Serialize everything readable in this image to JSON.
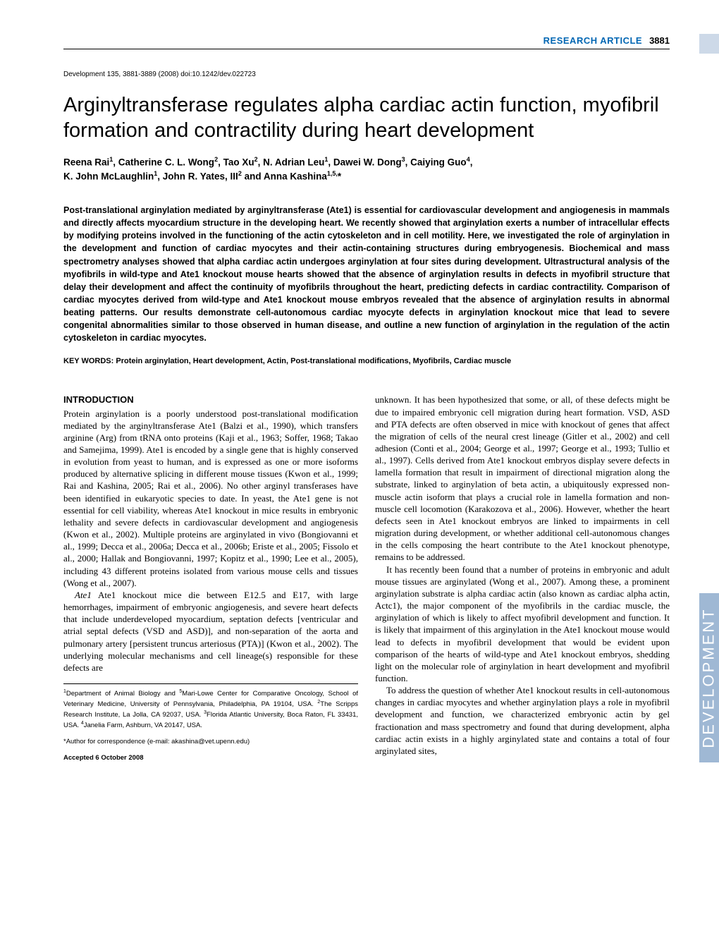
{
  "header": {
    "label": "RESEARCH ARTICLE",
    "page_number": "3881",
    "label_color": "#0066b3"
  },
  "doi": "Development 135, 3881-3889 (2008) doi:10.1242/dev.022723",
  "title": "Arginyltransferase regulates alpha cardiac actin function, myofibril formation and contractility during heart development",
  "authors_line1": "Reena Rai",
  "authors_sup1": "1",
  "authors_line2": ", Catherine C. L. Wong",
  "authors_sup2": "2",
  "authors_line3": ", Tao Xu",
  "authors_sup3": "2",
  "authors_line4": ", N. Adrian Leu",
  "authors_sup4": "1",
  "authors_line5": ", Dawei W. Dong",
  "authors_sup5": "3",
  "authors_line6": ", Caiying Guo",
  "authors_sup6": "4",
  "authors_line7": ",",
  "authors_line8": "K. John McLaughlin",
  "authors_sup8": "1",
  "authors_line9": ", John R. Yates, III",
  "authors_sup9": "2",
  "authors_line10": " and Anna Kashina",
  "authors_sup10": "1,5,",
  "authors_star": "*",
  "abstract": "Post-translational arginylation mediated by arginyltransferase (Ate1) is essential for cardiovascular development and angiogenesis in mammals and directly affects myocardium structure in the developing heart. We recently showed that arginylation exerts a number of intracellular effects by modifying proteins involved in the functioning of the actin cytoskeleton and in cell motility. Here, we investigated the role of arginylation in the development and function of cardiac myocytes and their actin-containing structures during embryogenesis. Biochemical and mass spectrometry analyses showed that alpha cardiac actin undergoes arginylation at four sites during development. Ultrastructural analysis of the myofibrils in wild-type and Ate1 knockout mouse hearts showed that the absence of arginylation results in defects in myofibril structure that delay their development and affect the continuity of myofibrils throughout the heart, predicting defects in cardiac contractility. Comparison of cardiac myocytes derived from wild-type and Ate1 knockout mouse embryos revealed that the absence of arginylation results in abnormal beating patterns. Our results demonstrate cell-autonomous cardiac myocyte defects in arginylation knockout mice that lead to severe congenital abnormalities similar to those observed in human disease, and outline a new function of arginylation in the regulation of the actin cytoskeleton in cardiac myocytes.",
  "keywords": "KEY WORDS: Protein arginylation, Heart development, Actin, Post-translational modifications, Myofibrils, Cardiac muscle",
  "intro_heading": "INTRODUCTION",
  "col1_p1": "Protein arginylation is a poorly understood post-translational modification mediated by the arginyltransferase Ate1 (Balzi et al., 1990), which transfers arginine (Arg) from tRNA onto proteins (Kaji et al., 1963; Soffer, 1968; Takao and Samejima, 1999). Ate1 is encoded by a single gene that is highly conserved in evolution from yeast to human, and is expressed as one or more isoforms produced by alternative splicing in different mouse tissues (Kwon et al., 1999; Rai and Kashina, 2005; Rai et al., 2006). No other arginyl transferases have been identified in eukaryotic species to date. In yeast, the Ate1 gene is not essential for cell viability, whereas Ate1 knockout in mice results in embryonic lethality and severe defects in cardiovascular development and angiogenesis (Kwon et al., 2002). Multiple proteins are arginylated in vivo (Bongiovanni et al., 1999; Decca et al., 2006a; Decca et al., 2006b; Eriste et al., 2005; Fissolo et al., 2000; Hallak and Bongiovanni, 1997; Kopitz et al., 1990; Lee et al., 2005), including 43 different proteins isolated from various mouse cells and tissues (Wong et al., 2007).",
  "col1_p2": "Ate1 knockout mice die between E12.5 and E17, with large hemorrhages, impairment of embryonic angiogenesis, and severe heart defects that include underdeveloped myocardium, septation defects [ventricular and atrial septal defects (VSD and ASD)], and non-separation of the aorta and pulmonary artery [persistent truncus arteriosus (PTA)] (Kwon et al., 2002). The underlying molecular mechanisms and cell lineage(s) responsible for these defects are",
  "col2_p1": "unknown. It has been hypothesized that some, or all, of these defects might be due to impaired embryonic cell migration during heart formation. VSD, ASD and PTA defects are often observed in mice with knockout of genes that affect the migration of cells of the neural crest lineage (Gitler et al., 2002) and cell adhesion (Conti et al., 2004; George et al., 1997; George et al., 1993; Tullio et al., 1997). Cells derived from Ate1 knockout embryos display severe defects in lamella formation that result in impairment of directional migration along the substrate, linked to arginylation of beta actin, a ubiquitously expressed non-muscle actin isoform that plays a crucial role in lamella formation and non-muscle cell locomotion (Karakozova et al., 2006). However, whether the heart defects seen in Ate1 knockout embryos are linked to impairments in cell migration during development, or whether additional cell-autonomous changes in the cells composing the heart contribute to the Ate1 knockout phenotype, remains to be addressed.",
  "col2_p2": "It has recently been found that a number of proteins in embryonic and adult mouse tissues are arginylated (Wong et al., 2007). Among these, a prominent arginylation substrate is alpha cardiac actin (also known as cardiac alpha actin, Actc1), the major component of the myofibrils in the cardiac muscle, the arginylation of which is likely to affect myofibril development and function. It is likely that impairment of this arginylation in the Ate1 knockout mouse would lead to defects in myofibril development that would be evident upon comparison of the hearts of wild-type and Ate1 knockout embryos, shedding light on the molecular role of arginylation in heart development and myofibril function.",
  "col2_p3": "To address the question of whether Ate1 knockout results in cell-autonomous changes in cardiac myocytes and whether arginylation plays a role in myofibril development and function, we characterized embryonic actin by gel fractionation and mass spectrometry and found that during development, alpha cardiac actin exists in a highly arginylated state and contains a total of four arginylated sites,",
  "affiliations": "Department of Animal Biology and ",
  "affiliations2": "Mari-Lowe Center for Comparative Oncology, School of Veterinary Medicine, University of Pennsylvania, Philadelphia, PA 19104, USA. ",
  "affiliations3": "The Scripps Research Institute, La Jolla, CA 92037, USA. ",
  "affiliations4": "Florida Atlantic University, Boca Raton, FL 33431, USA. ",
  "affiliations5": "Janelia Farm, Ashburn, VA 20147, USA.",
  "correspondence": "*Author for correspondence (e-mail: akashina@vet.upenn.edu)",
  "accepted": "Accepted 6 October 2008",
  "side_tab": "DEVELOPMENT",
  "colors": {
    "header_blue": "#0066b3",
    "tab_bg": "#9fb8d4",
    "top_tab_bg": "#cdd9e8"
  }
}
